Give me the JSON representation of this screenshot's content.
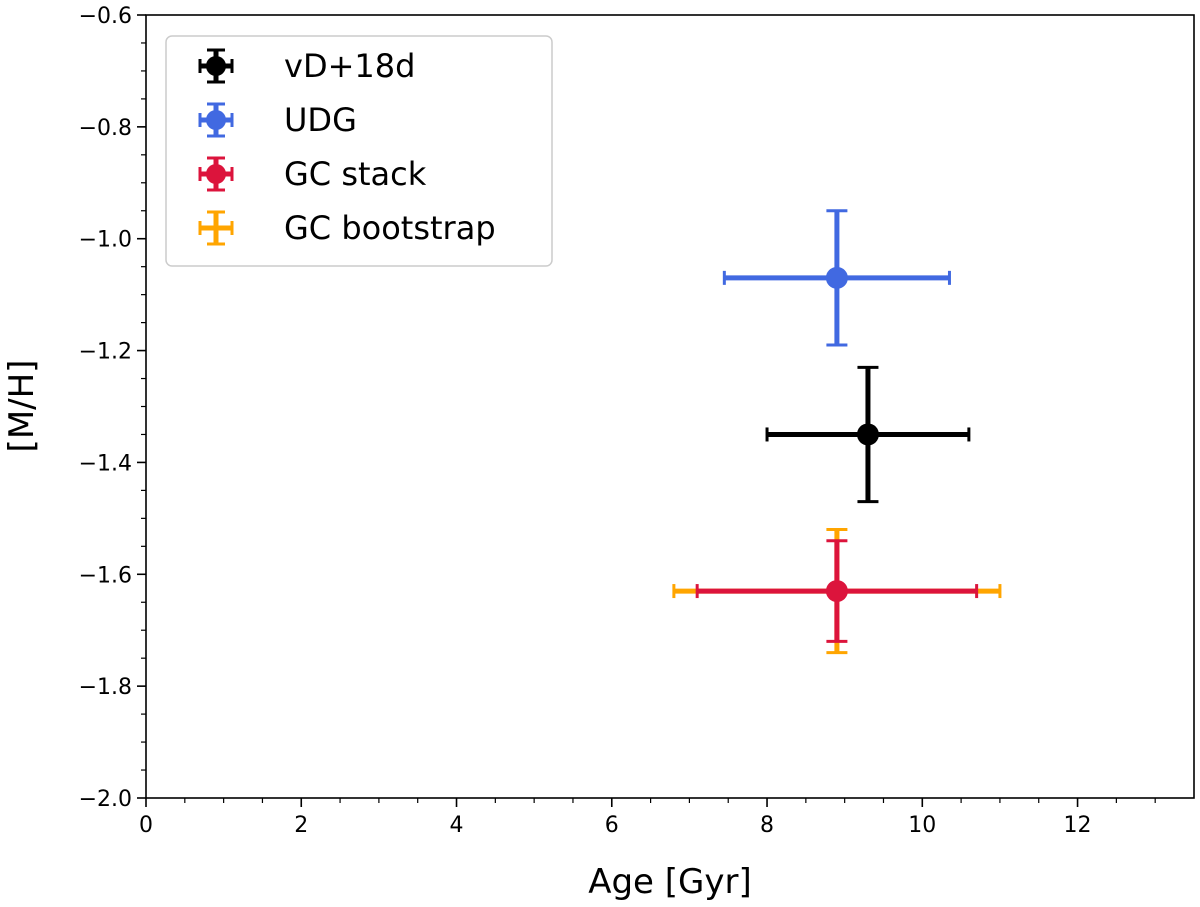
{
  "chart_data": {
    "type": "scatter",
    "title": "",
    "xlabel": "Age [Gyr]",
    "ylabel": "[M/H]",
    "xlim": [
      0,
      13.5
    ],
    "ylim": [
      -2.0,
      -0.6
    ],
    "xticks": [
      0,
      2,
      4,
      6,
      8,
      10,
      12
    ],
    "xtick_labels": [
      "0",
      "2",
      "4",
      "6",
      "8",
      "10",
      "12"
    ],
    "yticks": [
      -2.0,
      -1.8,
      -1.6,
      -1.4,
      -1.2,
      -1.0,
      -0.8,
      -0.6
    ],
    "ytick_labels": [
      "−2.0",
      "−1.8",
      "−1.6",
      "−1.4",
      "−1.2",
      "−1.0",
      "−0.8",
      "−0.6"
    ],
    "grid": false,
    "legend_position": "top-left",
    "series": [
      {
        "name": "vD+18d",
        "color": "#000000",
        "x": 9.3,
        "y": -1.35,
        "xerr": [
          1.3,
          1.3
        ],
        "yerr": [
          0.12,
          0.12
        ],
        "marker": true
      },
      {
        "name": "UDG",
        "color": "#4169e1",
        "x": 8.9,
        "y": -1.07,
        "xerr": [
          1.45,
          1.45
        ],
        "yerr": [
          0.12,
          0.12
        ],
        "marker": true
      },
      {
        "name": "GC bootstrap",
        "color": "#ffa500",
        "x": 8.9,
        "y": -1.63,
        "xerr": [
          2.1,
          2.1
        ],
        "yerr": [
          0.11,
          0.11
        ],
        "marker": false
      },
      {
        "name": "GC stack",
        "color": "#dc143c",
        "x": 8.9,
        "y": -1.63,
        "xerr": [
          1.8,
          1.8
        ],
        "yerr": [
          0.09,
          0.09
        ],
        "marker": true
      }
    ],
    "legend_order": [
      "vD+18d",
      "UDG",
      "GC stack",
      "GC bootstrap"
    ]
  }
}
